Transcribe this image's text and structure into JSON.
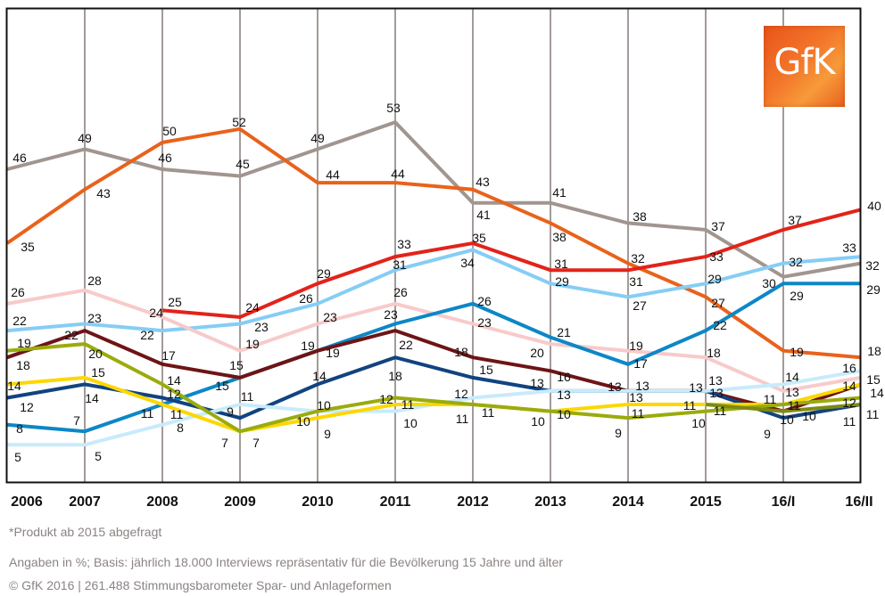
{
  "chart_data": {
    "type": "line",
    "title": "",
    "xlabel": "",
    "ylabel": "",
    "unit": "%",
    "ylim": [
      0,
      70
    ],
    "grid": "vertical lines at each category",
    "legend": "none",
    "categories": [
      "2006",
      "2007",
      "2008",
      "2009",
      "2010",
      "2011",
      "2012",
      "2013",
      "2014",
      "2015",
      "16/I",
      "16/II"
    ],
    "series": [
      {
        "key": "gray",
        "color": "#a1958f",
        "values": [
          46,
          49,
          46,
          45,
          49,
          53,
          41,
          41,
          38,
          37,
          30,
          32
        ]
      },
      {
        "key": "orange",
        "color": "#e9621b",
        "values": [
          35,
          43,
          50,
          52,
          44,
          44,
          43,
          38,
          32,
          27,
          19,
          18
        ]
      },
      {
        "key": "red",
        "color": "#e2231a",
        "values": [
          null,
          null,
          25,
          24,
          29,
          33,
          35,
          31,
          31,
          33,
          37,
          40
        ]
      },
      {
        "key": "light-blue",
        "color": "#85cdf5",
        "values": [
          22,
          23,
          22,
          23,
          26,
          31,
          34,
          29,
          27,
          29,
          32,
          33
        ]
      },
      {
        "key": "pink",
        "color": "#f8caca",
        "values": [
          26,
          28,
          24,
          19,
          23,
          26,
          23,
          20,
          19,
          18,
          13,
          15
        ]
      },
      {
        "key": "medium-blue",
        "color": "#0c87c7",
        "values": [
          8,
          7,
          11,
          15,
          19,
          23,
          26,
          21,
          17,
          22,
          29,
          29
        ]
      },
      {
        "key": "dark-red",
        "color": "#6e1416",
        "values": [
          18,
          22,
          17,
          15,
          19,
          22,
          18,
          16,
          13,
          13,
          10,
          14
        ]
      },
      {
        "key": "navy",
        "color": "#114380",
        "values": [
          12,
          14,
          12,
          9,
          14,
          18,
          15,
          13,
          13,
          13,
          9,
          11
        ]
      },
      {
        "key": "pale-cyan",
        "color": "#c8ebfb",
        "values": [
          5,
          5,
          8,
          11,
          10,
          10,
          12,
          13,
          13,
          13,
          14,
          16
        ]
      },
      {
        "key": "yellow",
        "color": "#fcd700",
        "values": [
          14,
          15,
          11,
          7,
          9,
          11,
          11,
          10,
          11,
          11,
          11,
          14
        ]
      },
      {
        "key": "olive",
        "color": "#9aab0c",
        "values": [
          19,
          20,
          14,
          7,
          10,
          12,
          11,
          10,
          9,
          10,
          11,
          12
        ]
      },
      {
        "key": "dark-olive",
        "color": "#7d8a12",
        "values": [
          null,
          null,
          null,
          null,
          null,
          null,
          null,
          null,
          null,
          11,
          10,
          11
        ]
      }
    ]
  },
  "logo": {
    "text": "GfK",
    "color": "#ee6a22"
  },
  "footnote": "*Produkt ab 2015 abgefragt",
  "source": "Angaben in %; Basis: jährlich 18.000 Interviews repräsentativ für die Bevölkerung 15 Jahre und älter",
  "copyright": "© GfK 2016 | 261.488 Stimmungsbarometer Spar- und Anlageformen"
}
